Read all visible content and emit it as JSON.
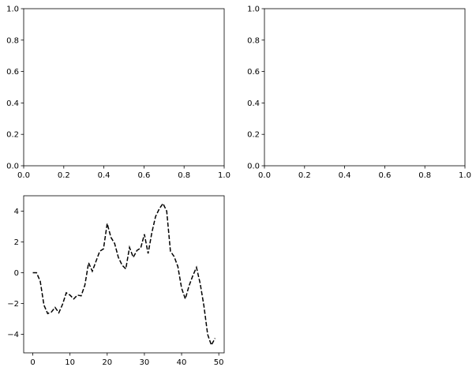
{
  "chart_data": [
    {
      "type": "line",
      "position": "top-left",
      "title": "",
      "xlabel": "",
      "ylabel": "",
      "xlim": [
        0,
        1
      ],
      "ylim": [
        0,
        1
      ],
      "xticks": [
        0.0,
        0.2,
        0.4,
        0.6,
        0.8,
        1.0
      ],
      "xticklabels": [
        "0.0",
        "0.2",
        "0.4",
        "0.6",
        "0.8",
        "1.0"
      ],
      "yticks": [
        0.0,
        0.2,
        0.4,
        0.6,
        0.8,
        1.0
      ],
      "yticklabels": [
        "0.0",
        "0.2",
        "0.4",
        "0.6",
        "0.8",
        "1.0"
      ],
      "grid": false,
      "series": []
    },
    {
      "type": "line",
      "position": "top-right",
      "title": "",
      "xlabel": "",
      "ylabel": "",
      "xlim": [
        0,
        1
      ],
      "ylim": [
        0,
        1
      ],
      "xticks": [
        0.0,
        0.2,
        0.4,
        0.6,
        0.8,
        1.0
      ],
      "xticklabels": [
        "0.0",
        "0.2",
        "0.4",
        "0.6",
        "0.8",
        "1.0"
      ],
      "yticks": [
        0.0,
        0.2,
        0.4,
        0.6,
        0.8,
        1.0
      ],
      "yticklabels": [
        "0.0",
        "0.2",
        "0.4",
        "0.6",
        "0.8",
        "1.0"
      ],
      "grid": false,
      "series": []
    },
    {
      "type": "line",
      "position": "bottom-left",
      "title": "",
      "xlabel": "",
      "ylabel": "",
      "xlim": [
        -2.45,
        51.45
      ],
      "ylim": [
        -5.2,
        5.0
      ],
      "xticks": [
        0,
        10,
        20,
        30,
        40,
        50
      ],
      "xticklabels": [
        "0",
        "10",
        "20",
        "30",
        "40",
        "50"
      ],
      "yticks": [
        -4,
        -2,
        0,
        2,
        4
      ],
      "yticklabels": [
        "−4",
        "−2",
        "0",
        "2",
        "4"
      ],
      "grid": false,
      "series": [
        {
          "color": "#000000",
          "linestyle": "dashed",
          "x": [
            0,
            1,
            2,
            3,
            4,
            5,
            6,
            7,
            8,
            9,
            10,
            11,
            12,
            13,
            14,
            15,
            16,
            17,
            18,
            19,
            20,
            21,
            22,
            23,
            24,
            25,
            26,
            27,
            28,
            29,
            30,
            31,
            32,
            33,
            34,
            35,
            36,
            37,
            38,
            39,
            40,
            41,
            42,
            43,
            44,
            45,
            46,
            47,
            48,
            49
          ],
          "y": [
            0.0,
            0.0,
            -0.55,
            -2.1,
            -2.65,
            -2.55,
            -2.25,
            -2.6,
            -2.05,
            -1.3,
            -1.45,
            -1.7,
            -1.45,
            -1.5,
            -0.8,
            0.65,
            0.1,
            0.75,
            1.4,
            1.55,
            3.2,
            2.3,
            1.9,
            1.0,
            0.5,
            0.25,
            1.65,
            1.0,
            1.45,
            1.6,
            2.5,
            1.25,
            2.6,
            3.65,
            4.15,
            4.5,
            4.0,
            1.4,
            1.05,
            0.4,
            -1.0,
            -1.7,
            -0.85,
            -0.2,
            0.35,
            -0.7,
            -2.15,
            -4.0,
            -4.7,
            -4.25
          ]
        }
      ]
    }
  ]
}
